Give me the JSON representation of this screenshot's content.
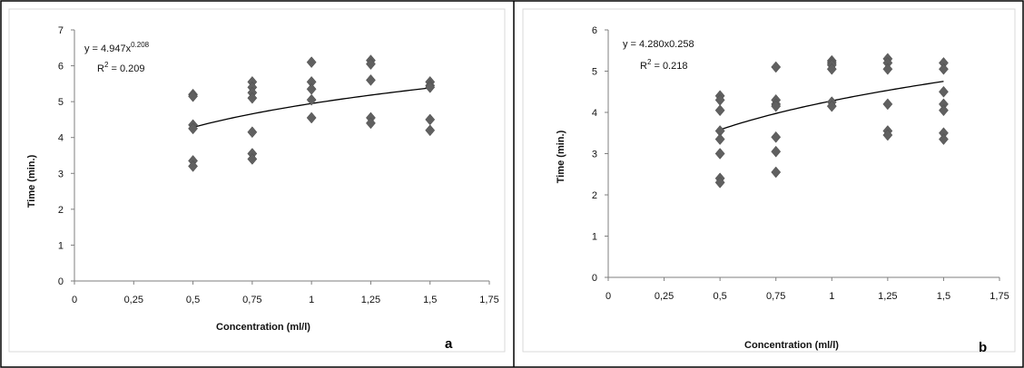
{
  "chart_data": [
    {
      "type": "scatter",
      "panel_label": "a",
      "xlabel": "Concentration (ml/l)",
      "ylabel": "Time (min.)",
      "xlim": [
        0,
        1.75
      ],
      "ylim": [
        0,
        7
      ],
      "xticks": [
        "0",
        "0,25",
        "0,5",
        "0,75",
        "1",
        "1,25",
        "1,5",
        "1,75"
      ],
      "yticks": [
        "0",
        "1",
        "2",
        "3",
        "4",
        "5",
        "6",
        "7"
      ],
      "grid": false,
      "equation": {
        "prefix": "y = 4.947x",
        "exponent": "0.208"
      },
      "r2": {
        "prefix": "R",
        "sup": "2",
        "value": " = 0.209"
      },
      "trend": {
        "type": "power",
        "a": 4.947,
        "b": 0.208,
        "x_range": [
          0.5,
          1.5
        ]
      },
      "points": [
        [
          0.5,
          5.2
        ],
        [
          0.5,
          5.15
        ],
        [
          0.5,
          4.35
        ],
        [
          0.5,
          4.25
        ],
        [
          0.5,
          3.35
        ],
        [
          0.5,
          3.2
        ],
        [
          0.75,
          5.55
        ],
        [
          0.75,
          5.4
        ],
        [
          0.75,
          5.25
        ],
        [
          0.75,
          5.1
        ],
        [
          0.75,
          4.15
        ],
        [
          0.75,
          3.55
        ],
        [
          0.75,
          3.4
        ],
        [
          1,
          6.1
        ],
        [
          1,
          5.55
        ],
        [
          1,
          5.35
        ],
        [
          1,
          5.05
        ],
        [
          1,
          4.55
        ],
        [
          1.25,
          6.15
        ],
        [
          1.25,
          6.05
        ],
        [
          1.25,
          5.6
        ],
        [
          1.25,
          4.55
        ],
        [
          1.25,
          4.4
        ],
        [
          1.5,
          5.55
        ],
        [
          1.5,
          5.45
        ],
        [
          1.5,
          5.4
        ],
        [
          1.5,
          4.5
        ],
        [
          1.5,
          4.2
        ]
      ]
    },
    {
      "type": "scatter",
      "panel_label": "b",
      "xlabel": "Concentration  (ml/l)",
      "ylabel": "Time (min.)",
      "xlim": [
        0,
        1.75
      ],
      "ylim": [
        0,
        6
      ],
      "xticks": [
        "0",
        "0,25",
        "0,5",
        "0,75",
        "1",
        "1,25",
        "1,5",
        "1,75"
      ],
      "yticks": [
        "0",
        "1",
        "2",
        "3",
        "4",
        "5",
        "6"
      ],
      "grid": false,
      "equation": {
        "prefix": "y = 4.280x0.258",
        "exponent": ""
      },
      "r2": {
        "prefix": "R",
        "sup": "2",
        "value": " = 0.218"
      },
      "trend": {
        "type": "power",
        "a": 4.28,
        "b": 0.258,
        "x_range": [
          0.5,
          1.5
        ]
      },
      "points": [
        [
          0.5,
          4.4
        ],
        [
          0.5,
          4.3
        ],
        [
          0.5,
          4.05
        ],
        [
          0.5,
          3.55
        ],
        [
          0.5,
          3.35
        ],
        [
          0.5,
          3.0
        ],
        [
          0.5,
          2.4
        ],
        [
          0.5,
          2.3
        ],
        [
          0.75,
          5.1
        ],
        [
          0.75,
          4.3
        ],
        [
          0.75,
          4.2
        ],
        [
          0.75,
          4.15
        ],
        [
          0.75,
          3.4
        ],
        [
          0.75,
          3.05
        ],
        [
          0.75,
          2.55
        ],
        [
          1,
          5.25
        ],
        [
          1,
          5.2
        ],
        [
          1,
          5.15
        ],
        [
          1,
          5.05
        ],
        [
          1,
          4.25
        ],
        [
          1,
          4.15
        ],
        [
          1.25,
          5.3
        ],
        [
          1.25,
          5.2
        ],
        [
          1.25,
          5.05
        ],
        [
          1.25,
          4.2
        ],
        [
          1.25,
          3.55
        ],
        [
          1.25,
          3.45
        ],
        [
          1.5,
          5.2
        ],
        [
          1.5,
          5.05
        ],
        [
          1.5,
          4.5
        ],
        [
          1.5,
          4.2
        ],
        [
          1.5,
          4.05
        ],
        [
          1.5,
          3.5
        ],
        [
          1.5,
          3.35
        ]
      ]
    }
  ],
  "colors": {
    "marker": "#606060",
    "trendline": "#000000",
    "axis": "#7f7f7f",
    "panel_border": "#d9d9d9",
    "frame": "#000000"
  }
}
